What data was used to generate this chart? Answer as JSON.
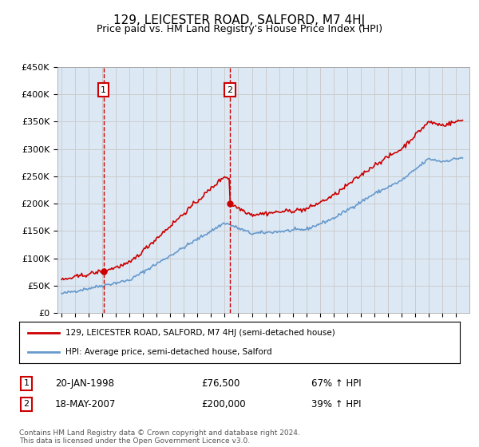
{
  "title": "129, LEICESTER ROAD, SALFORD, M7 4HJ",
  "subtitle": "Price paid vs. HM Land Registry's House Price Index (HPI)",
  "legend_line1": "129, LEICESTER ROAD, SALFORD, M7 4HJ (semi-detached house)",
  "legend_line2": "HPI: Average price, semi-detached house, Salford",
  "footer": "Contains HM Land Registry data © Crown copyright and database right 2024.\nThis data is licensed under the Open Government Licence v3.0.",
  "marker1": {
    "label": "1",
    "date": "20-JAN-1998",
    "price": 76500,
    "pct": "67% ↑ HPI"
  },
  "marker2": {
    "label": "2",
    "date": "18-MAY-2007",
    "price": 200000,
    "pct": "39% ↑ HPI"
  },
  "sold_line_color": "#cc0000",
  "hpi_line_color": "#6699cc",
  "marker_vline_color": "#cc0000",
  "background_color": "#dce9f5",
  "plot_bg_color": "#ffffff",
  "grid_color": "#cccccc",
  "ylim": [
    0,
    450000
  ],
  "yticks": [
    0,
    50000,
    100000,
    150000,
    200000,
    250000,
    300000,
    350000,
    400000,
    450000
  ],
  "ytick_labels": [
    "£0",
    "£50K",
    "£100K",
    "£150K",
    "£200K",
    "£250K",
    "£300K",
    "£350K",
    "£400K",
    "£450K"
  ]
}
